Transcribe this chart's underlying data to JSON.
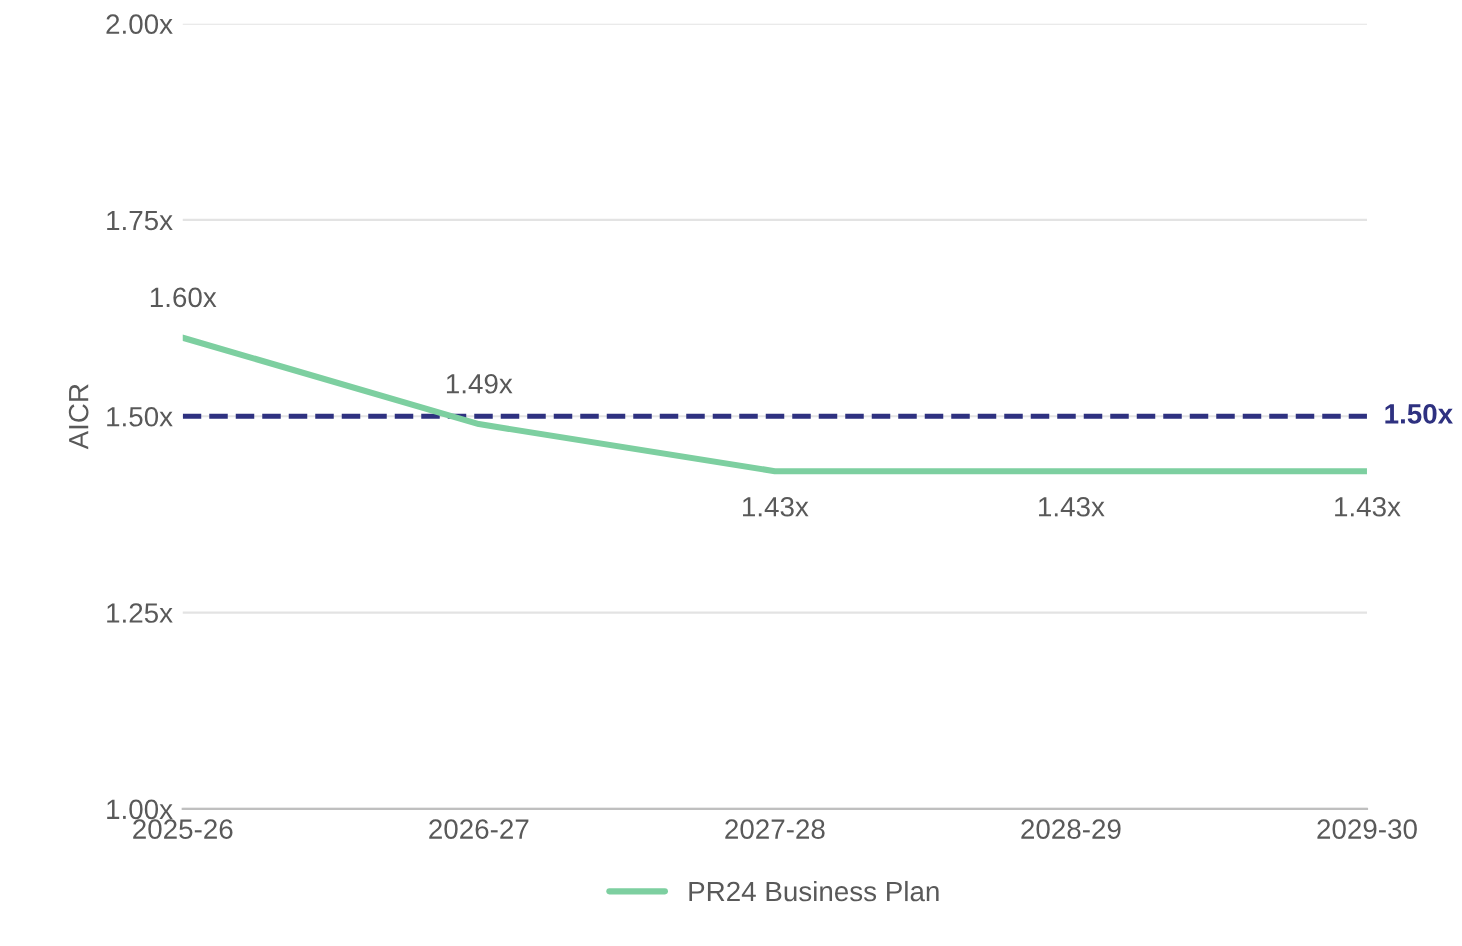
{
  "chart_data": {
    "type": "line",
    "ylabel": "AICR",
    "categories": [
      "2025-26",
      "2026-27",
      "2027-28",
      "2028-29",
      "2029-30"
    ],
    "series": [
      {
        "name": "PR24 Business Plan",
        "color": "#7dcfa0",
        "values": [
          1.6,
          1.49,
          1.43,
          1.43,
          1.43
        ],
        "value_labels": [
          "1.60x",
          "1.49x",
          "1.43x",
          "1.43x",
          "1.43x"
        ]
      }
    ],
    "ref_lines": [
      {
        "axis": "y",
        "value": 1.5,
        "label": "1.50x",
        "color": "#2e3180",
        "line_style": "dashed"
      }
    ],
    "ylim": [
      1.0,
      2.0
    ],
    "yticks": [
      {
        "value": 1.0,
        "label": "1.00x"
      },
      {
        "value": 1.25,
        "label": "1.25x"
      },
      {
        "value": 1.5,
        "label": "1.50x"
      },
      {
        "value": 1.75,
        "label": "1.75x"
      },
      {
        "value": 2.0,
        "label": "2.00x"
      }
    ],
    "grid": "y",
    "legend": "bottom",
    "marker": "none",
    "line_style": "solid"
  }
}
